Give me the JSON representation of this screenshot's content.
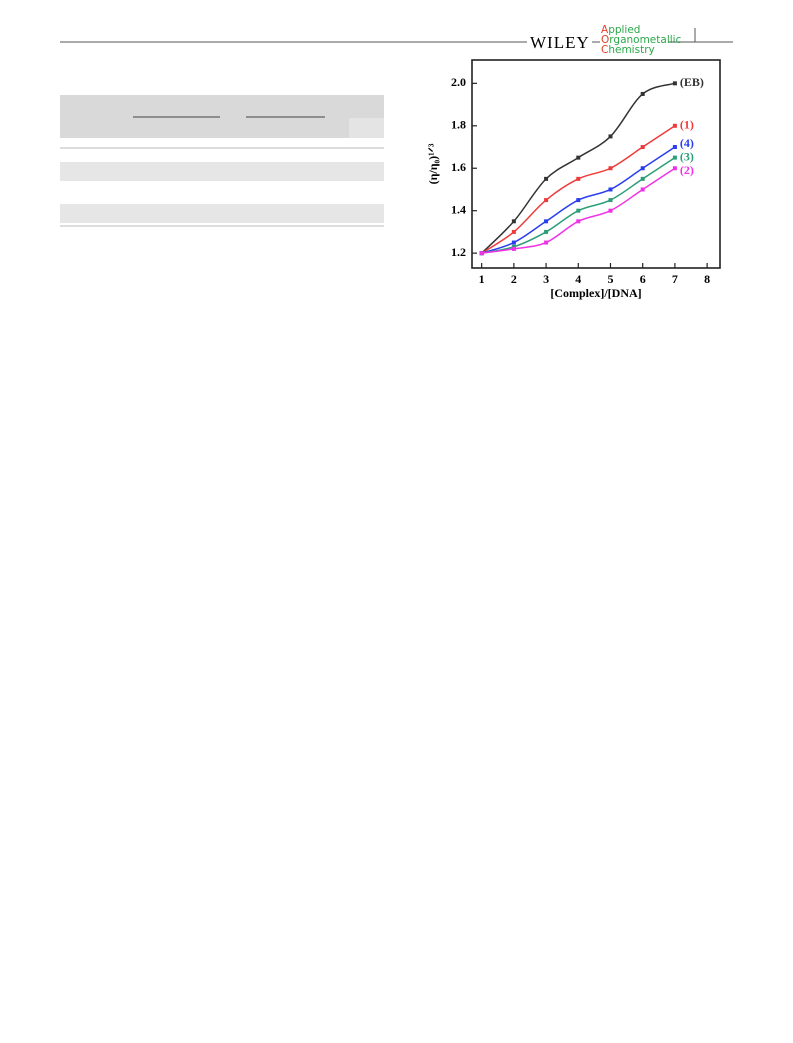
{
  "header": {
    "publisher": "WILEY",
    "journal": [
      "Applied",
      "Organometallic",
      "Chemistry"
    ]
  },
  "chart_data": {
    "type": "line",
    "xlabel": "[Complex]/[DNA]",
    "ylabel": "(η/η₀)¹ᐟ³",
    "x": [
      1,
      2,
      3,
      4,
      5,
      6,
      7
    ],
    "series": [
      {
        "name": "(EB)",
        "color": "#333333",
        "values": [
          1.2,
          1.35,
          1.55,
          1.65,
          1.75,
          1.95,
          2.0
        ]
      },
      {
        "name": "(1)",
        "color": "#f03a3a",
        "values": [
          1.2,
          1.3,
          1.45,
          1.55,
          1.6,
          1.7,
          1.8
        ]
      },
      {
        "name": "(4)",
        "color": "#2a3ef0",
        "values": [
          1.2,
          1.25,
          1.35,
          1.45,
          1.5,
          1.6,
          1.7
        ]
      },
      {
        "name": "(3)",
        "color": "#2a9e78",
        "values": [
          1.2,
          1.23,
          1.3,
          1.4,
          1.45,
          1.55,
          1.65
        ]
      },
      {
        "name": "(2)",
        "color": "#f032e6",
        "values": [
          1.2,
          1.22,
          1.25,
          1.35,
          1.4,
          1.5,
          1.6
        ]
      }
    ],
    "xlim": [
      0.7,
      8.4
    ],
    "ylim": [
      1.13,
      2.11
    ],
    "xticks": [
      1,
      2,
      3,
      4,
      5,
      6,
      7,
      8
    ],
    "yticks": [
      {
        "value": 1.2,
        "label": "1.2"
      },
      {
        "value": 1.4,
        "label": "1.4"
      },
      {
        "value": 1.6,
        "label": "1.6"
      },
      {
        "value": 1.8,
        "label": "1.8"
      },
      {
        "value": 2.0,
        "label": "2.0"
      }
    ]
  }
}
